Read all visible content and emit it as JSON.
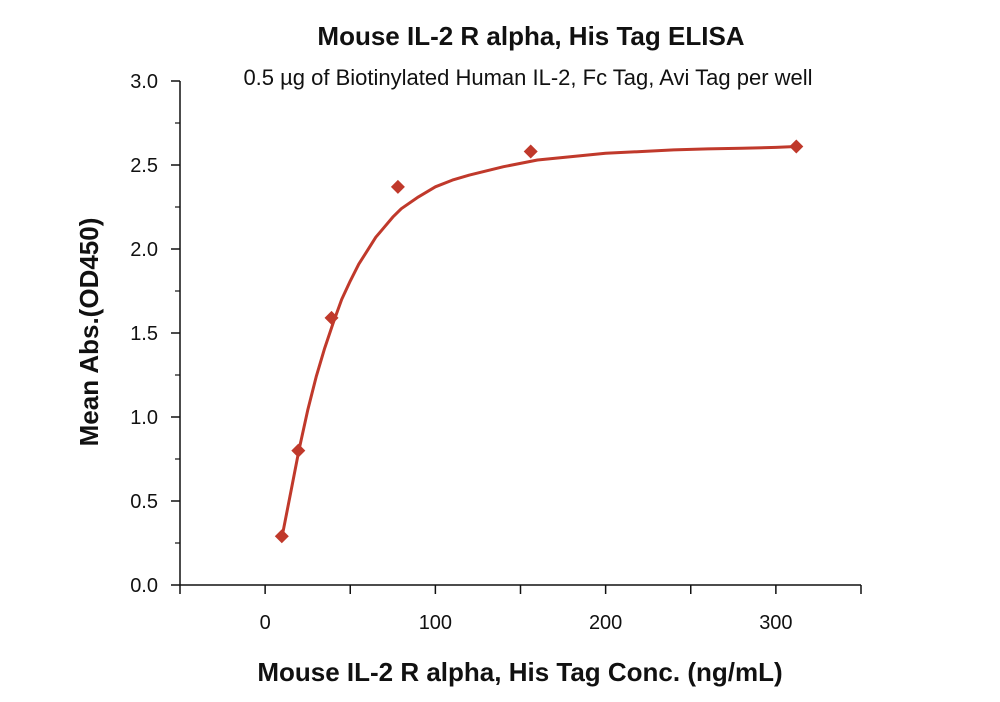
{
  "chart_data": {
    "type": "scatter",
    "title": "Mouse IL-2 R alpha, His Tag ELISA",
    "subtitle": "0.5 µg of Biotinylated Human IL-2, Fc Tag, Avi Tag per well",
    "xlabel": "Mouse IL-2 R alpha, His Tag Conc. (ng/mL)",
    "ylabel": "Mean Abs.(OD450)",
    "xlim": [
      -50,
      350
    ],
    "ylim": [
      0,
      3.0
    ],
    "x_ticks": [
      0,
      100,
      200,
      300
    ],
    "x_tick_labels": [
      "0",
      "100",
      "200",
      "300"
    ],
    "y_ticks": [
      0,
      0.5,
      1.0,
      1.5,
      2.0,
      2.5,
      3.0
    ],
    "y_tick_labels": [
      "0.0",
      "0.5",
      "1.0",
      "1.5",
      "2.0",
      "2.5",
      "3.0"
    ],
    "grid": false,
    "legend": "none",
    "series": [
      {
        "x": [
          9.8,
          19.5,
          39,
          78,
          156,
          312
        ],
        "y": [
          0.29,
          0.8,
          1.59,
          2.37,
          2.58,
          2.61
        ],
        "color": "#c0392b",
        "marker": "diamond"
      }
    ],
    "fit_curve": {
      "x": [
        9.8,
        15,
        20,
        25,
        30,
        35,
        40,
        45,
        50,
        55,
        60,
        65,
        70,
        75,
        80,
        90,
        100,
        110,
        120,
        140,
        160,
        180,
        200,
        220,
        240,
        260,
        280,
        300,
        312
      ],
      "y": [
        0.28,
        0.55,
        0.81,
        1.04,
        1.24,
        1.41,
        1.56,
        1.7,
        1.81,
        1.91,
        1.99,
        2.07,
        2.13,
        2.19,
        2.24,
        2.31,
        2.37,
        2.41,
        2.44,
        2.49,
        2.53,
        2.55,
        2.57,
        2.58,
        2.59,
        2.596,
        2.6,
        2.605,
        2.61
      ],
      "color": "#c0392b"
    }
  }
}
